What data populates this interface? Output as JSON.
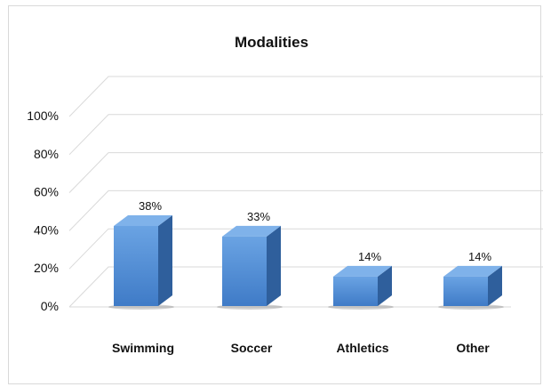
{
  "chart_data": {
    "type": "bar",
    "title": "Modalities",
    "categories": [
      "Swimming",
      "Soccer",
      "Athletics",
      "Other"
    ],
    "values": [
      38,
      33,
      14,
      14
    ],
    "value_labels": [
      "38%",
      "33%",
      "14%",
      "14%"
    ],
    "y_ticks": [
      0,
      20,
      40,
      60,
      80,
      100
    ],
    "y_tick_labels": [
      "0%",
      "20%",
      "40%",
      "60%",
      "80%",
      "100%"
    ],
    "ylim": [
      0,
      100
    ],
    "xlabel": "",
    "ylabel": "",
    "grid": true,
    "legend": "none",
    "style": "3d-column",
    "colors": {
      "bar_front_top": "#6aa3e3",
      "bar_front_bottom": "#3f7bc7",
      "bar_side": "#2f5f9c",
      "bar_top": "#7fb2ea",
      "gridline": "#d9d9d9",
      "text": "#111111"
    }
  }
}
